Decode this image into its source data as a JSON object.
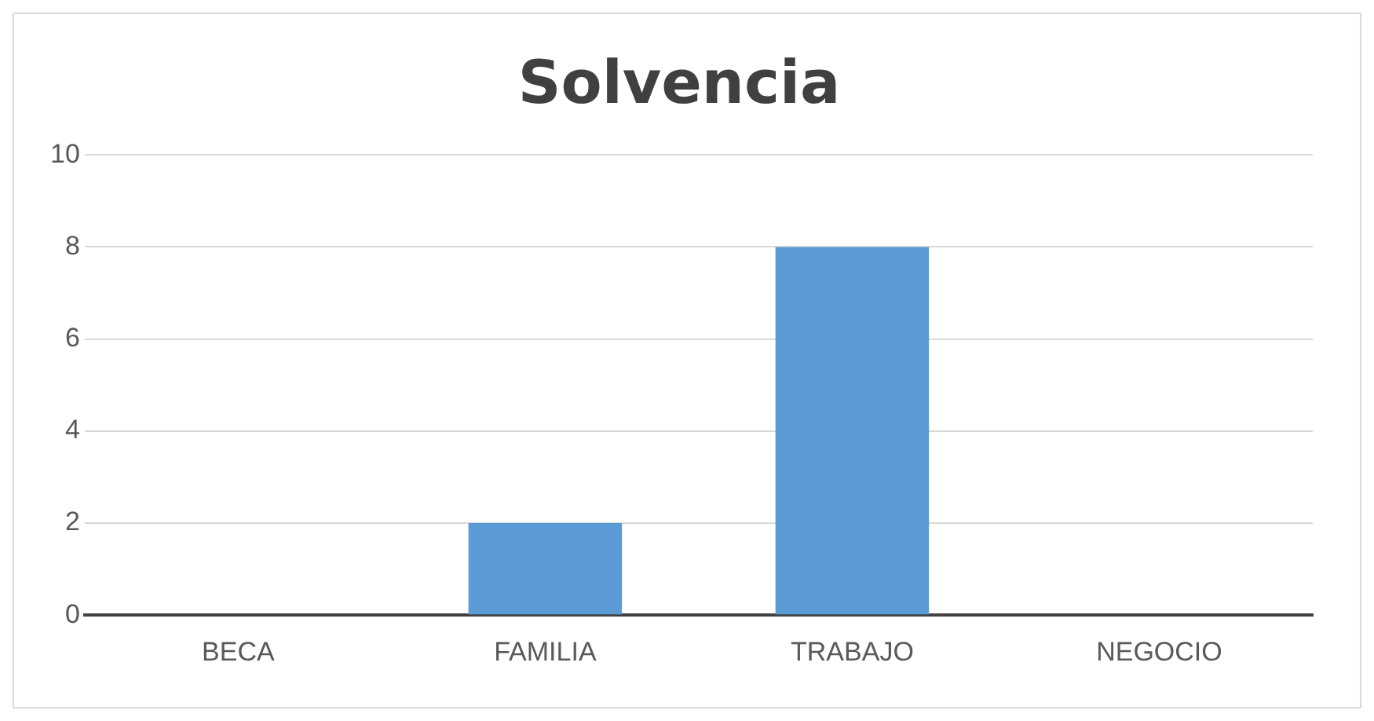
{
  "chart_data": {
    "type": "bar",
    "title": "Solvencia",
    "categories": [
      "BECA",
      "FAMILIA",
      "TRABAJO",
      "NEGOCIO"
    ],
    "values": [
      0,
      2,
      8,
      0
    ],
    "color": "#5b9bd5",
    "ylim": [
      0,
      10
    ],
    "yticks": [
      0,
      2,
      4,
      6,
      8,
      10
    ],
    "grid": "y",
    "legend": false
  }
}
